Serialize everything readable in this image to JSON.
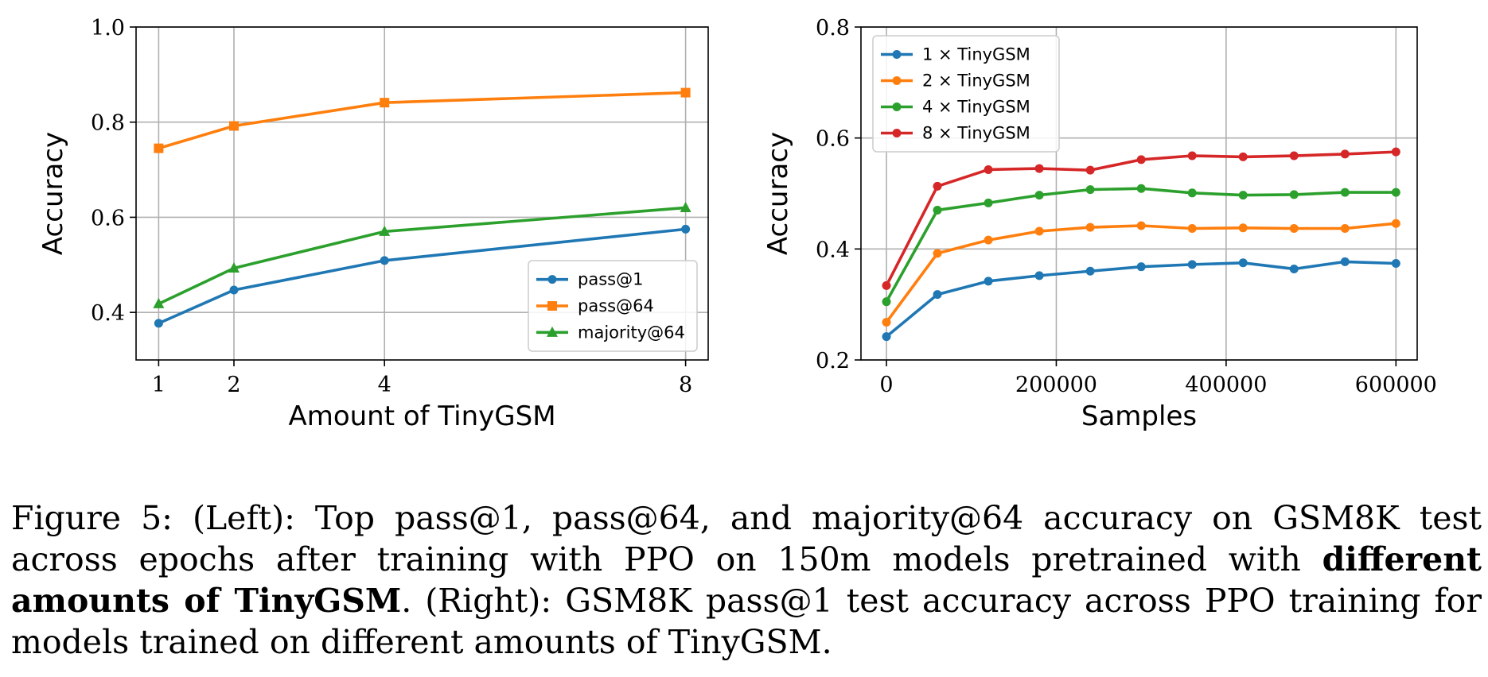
{
  "chart_data": [
    {
      "type": "line",
      "xlabel": "Amount of TinyGSM",
      "ylabel": "Accuracy",
      "xlim": [
        0.7,
        8.3
      ],
      "ylim": [
        0.3,
        1.0
      ],
      "xticks": [
        1,
        2,
        4,
        8
      ],
      "xtick_labels": [
        "1",
        "2",
        "4",
        "8"
      ],
      "yticks": [
        0.4,
        0.6,
        0.8,
        1.0
      ],
      "ytick_labels": [
        "0.4",
        "0.6",
        "0.8",
        "1.0"
      ],
      "grid": true,
      "legend_position": "lower-right",
      "x": [
        1,
        2,
        4,
        8
      ],
      "series": [
        {
          "name": "pass@1",
          "color": "#1f77b4",
          "marker": "circle",
          "values": [
            0.377,
            0.447,
            0.509,
            0.575
          ]
        },
        {
          "name": "pass@64",
          "color": "#ff7f0e",
          "marker": "square",
          "values": [
            0.745,
            0.792,
            0.841,
            0.862
          ]
        },
        {
          "name": "majority@64",
          "color": "#2ca02c",
          "marker": "triangle",
          "values": [
            0.418,
            0.493,
            0.57,
            0.62
          ]
        }
      ]
    },
    {
      "type": "line",
      "xlabel": "Samples",
      "ylabel": "Accuracy",
      "xlim": [
        -30000,
        625000
      ],
      "ylim": [
        0.2,
        0.8
      ],
      "xticks": [
        0,
        200000,
        400000,
        600000
      ],
      "xtick_labels": [
        "0",
        "200000",
        "400000",
        "600000"
      ],
      "yticks": [
        0.2,
        0.4,
        0.6,
        0.8
      ],
      "ytick_labels": [
        "0.2",
        "0.4",
        "0.6",
        "0.8"
      ],
      "grid": true,
      "legend_position": "upper-left",
      "x": [
        0,
        60000,
        120000,
        180000,
        240000,
        300000,
        360000,
        420000,
        480000,
        540000,
        600000
      ],
      "series": [
        {
          "name": "1 × TinyGSM",
          "color": "#1f77b4",
          "marker": "circle",
          "values": [
            0.242,
            0.318,
            0.342,
            0.352,
            0.36,
            0.368,
            0.372,
            0.375,
            0.364,
            0.377,
            0.374
          ]
        },
        {
          "name": "2 × TinyGSM",
          "color": "#ff7f0e",
          "marker": "circle",
          "values": [
            0.268,
            0.392,
            0.416,
            0.432,
            0.439,
            0.442,
            0.437,
            0.438,
            0.437,
            0.437,
            0.446
          ]
        },
        {
          "name": "4 × TinyGSM",
          "color": "#2ca02c",
          "marker": "circle",
          "values": [
            0.305,
            0.47,
            0.483,
            0.497,
            0.507,
            0.509,
            0.501,
            0.497,
            0.498,
            0.502,
            0.502
          ]
        },
        {
          "name": "8 × TinyGSM",
          "color": "#d62728",
          "marker": "circle",
          "values": [
            0.334,
            0.513,
            0.543,
            0.545,
            0.542,
            0.561,
            0.568,
            0.566,
            0.568,
            0.571,
            0.575
          ]
        }
      ]
    }
  ],
  "caption": {
    "part1": "Figure 5: (Left): Top pass@1, pass@64, and majority@64 accuracy on GSM8K test across epochs after training with PPO on 150m models pretrained with ",
    "bold": "different amounts of TinyGSM",
    "part2": ". (Right): GSM8K pass@1 test accuracy across PPO training for models trained on different amounts of TinyGSM."
  }
}
